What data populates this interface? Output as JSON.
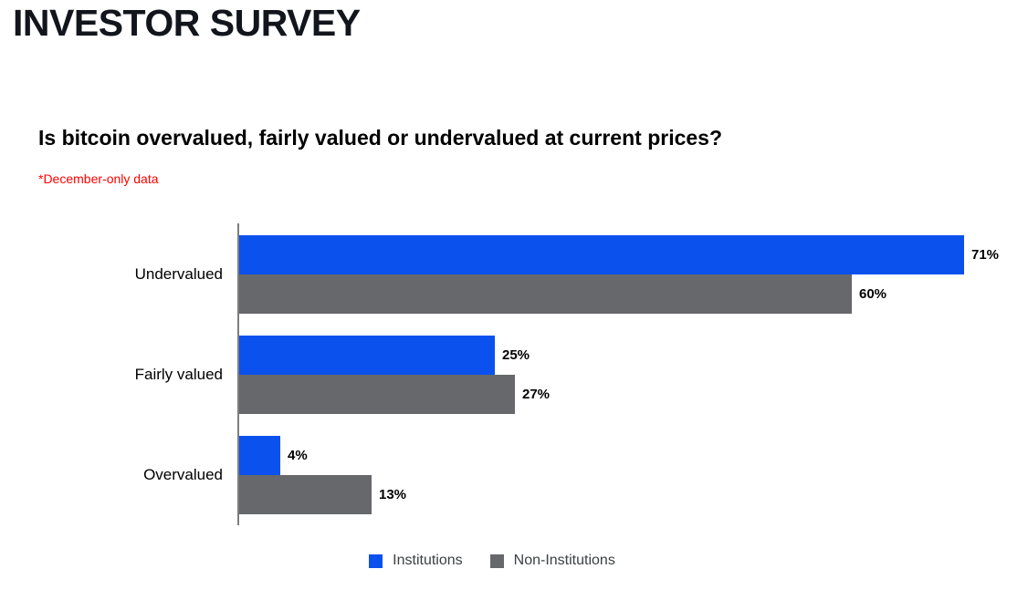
{
  "page": {
    "title": "INVESTOR SURVEY"
  },
  "chart": {
    "question": "Is bitcoin overvalued, fairly valued or undervalued at current prices?",
    "note": "*December-only data",
    "note_color": "#ff0000"
  },
  "chart_data": {
    "type": "bar",
    "orientation": "horizontal",
    "title": "Is bitcoin overvalued, fairly valued or undervalued at current prices?",
    "subtitle": "*December-only data",
    "categories": [
      "Undervalued",
      "Fairly valued",
      "Overvalued"
    ],
    "series": [
      {
        "name": "Institutions",
        "color": "#0b51ed",
        "values": [
          71,
          25,
          4
        ]
      },
      {
        "name": "Non-Institutions",
        "color": "#66686b",
        "values": [
          60,
          27,
          13
        ]
      }
    ],
    "value_suffix": "%",
    "xlim": [
      0,
      75
    ],
    "grid": false,
    "legend_position": "bottom"
  }
}
